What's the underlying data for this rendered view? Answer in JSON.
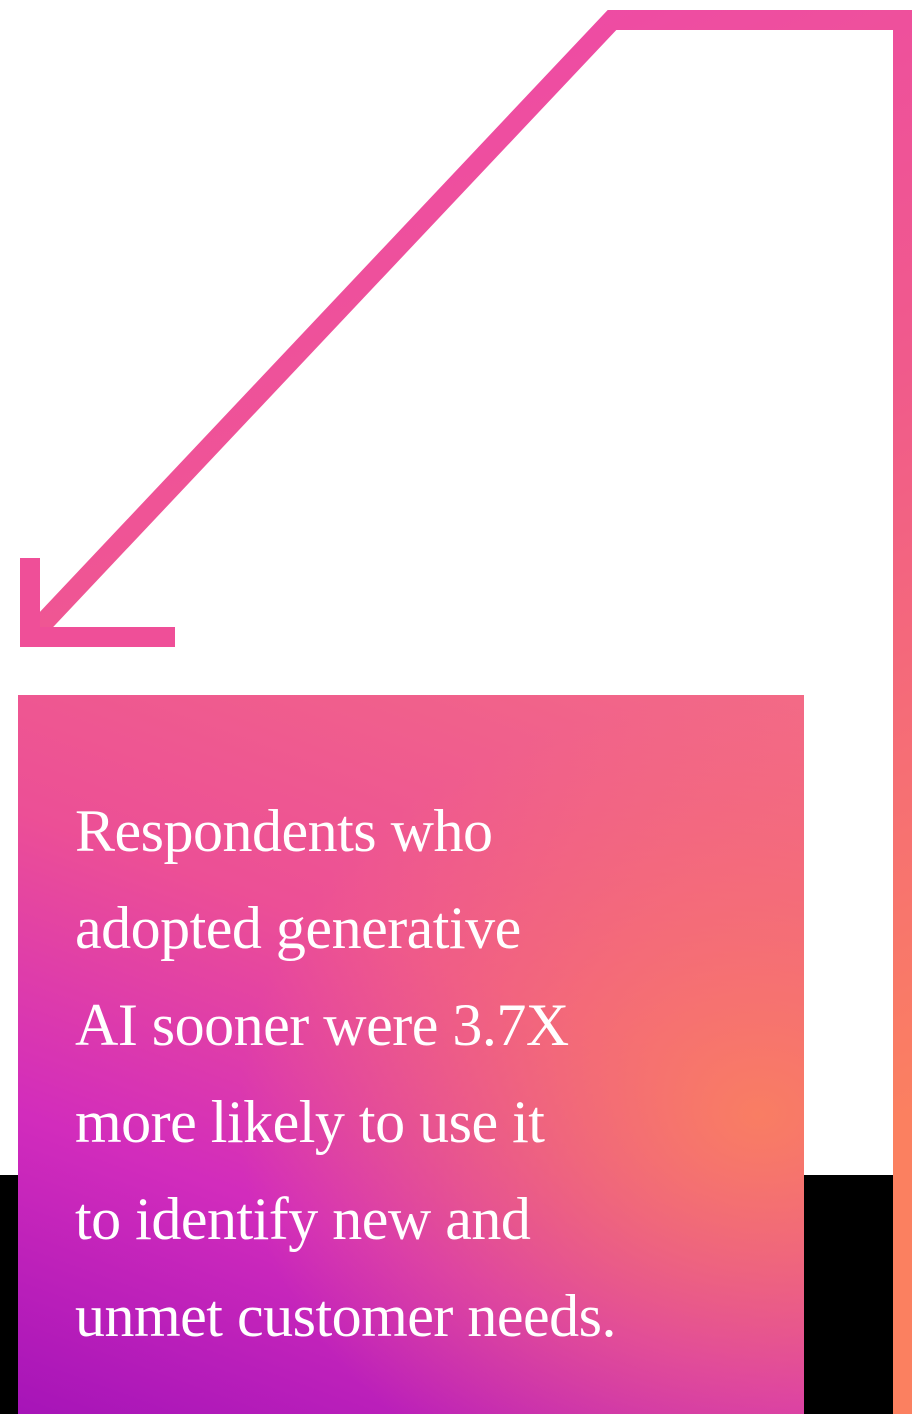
{
  "card": {
    "lines": [
      "Respondents who",
      "adopted generative",
      "AI sooner were 3.7X",
      "more likely to use it",
      "to identify new and",
      "unmet customer needs."
    ]
  }
}
